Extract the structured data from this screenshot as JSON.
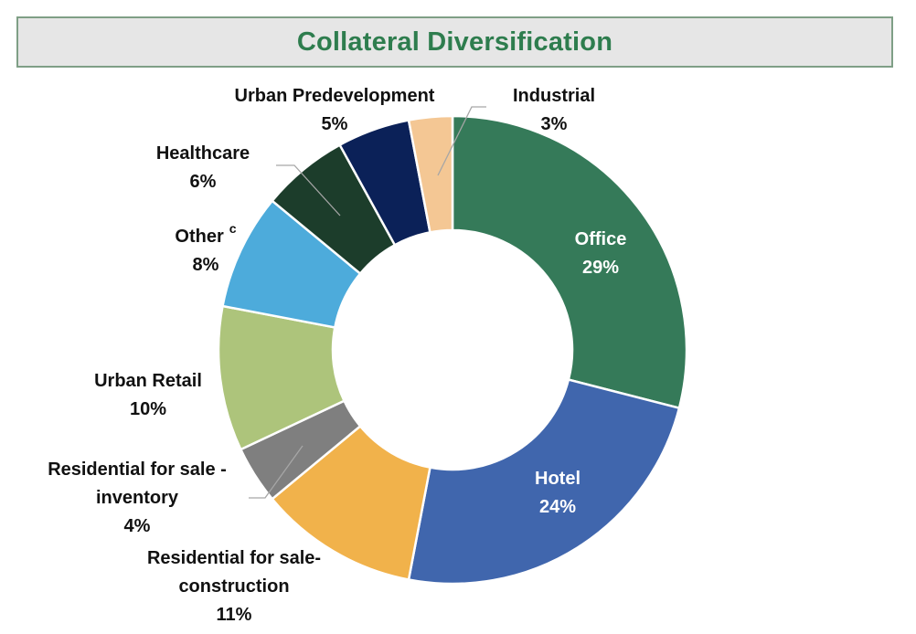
{
  "title": "Collateral Diversification",
  "chart_data": {
    "type": "pie",
    "style": "donut",
    "title": "Collateral Diversification",
    "unit": "%",
    "segments": [
      {
        "id": "office",
        "lines": [
          "Office"
        ],
        "value_label": "29%",
        "value": 29,
        "color": "#357a59"
      },
      {
        "id": "hotel",
        "lines": [
          "Hotel"
        ],
        "value_label": "24%",
        "value": 24,
        "color": "#4066ad"
      },
      {
        "id": "residential-construction",
        "lines": [
          "Residential for sale-",
          "construction"
        ],
        "value_label": "11%",
        "value": 11,
        "color": "#f1b24b"
      },
      {
        "id": "residential-inventory",
        "lines": [
          "Residential for sale -",
          "inventory"
        ],
        "value_label": "4%",
        "value": 4,
        "color": "#7f7f7f"
      },
      {
        "id": "urban-retail",
        "lines": [
          "Urban Retail"
        ],
        "value_label": "10%",
        "value": 10,
        "color": "#adc47b"
      },
      {
        "id": "other",
        "lines": [
          "Other"
        ],
        "superscript": "c",
        "value_label": "8%",
        "value": 8,
        "color": "#4dabdb"
      },
      {
        "id": "healthcare",
        "lines": [
          "Healthcare"
        ],
        "value_label": "6%",
        "value": 6,
        "color": "#1c3d2b"
      },
      {
        "id": "urban-predevelopment",
        "lines": [
          "Urban Predevelopment"
        ],
        "value_label": "5%",
        "value": 5,
        "color": "#0b2158"
      },
      {
        "id": "industrial",
        "lines": [
          "Industrial"
        ],
        "value_label": "3%",
        "value": 3,
        "color": "#f4c794"
      }
    ]
  }
}
